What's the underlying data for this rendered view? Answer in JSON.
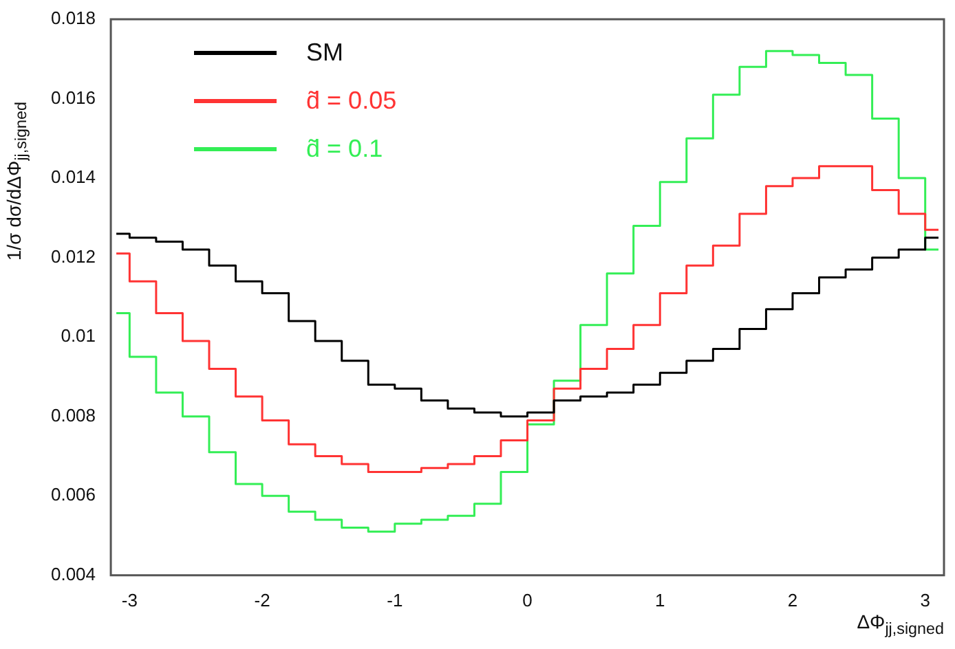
{
  "chart_data": {
    "type": "step",
    "xlabel": "ΔΦ$_{jj,signed}$",
    "ylabel": "1/σ dσ/dΔΦ$_{jj,signed}$",
    "x": [
      -3.1,
      -2.9,
      -2.7,
      -2.5,
      -2.3,
      -2.1,
      -1.9,
      -1.7,
      -1.5,
      -1.3,
      -1.1,
      -0.9,
      -0.7,
      -0.5,
      -0.3,
      -0.1,
      0.1,
      0.3,
      0.5,
      0.7,
      0.9,
      1.1,
      1.3,
      1.5,
      1.7,
      1.9,
      2.1,
      2.3,
      2.5,
      2.7,
      2.9,
      3.1
    ],
    "series": [
      {
        "name": "SM",
        "color": "#000000",
        "values": [
          0.0126,
          0.0125,
          0.0124,
          0.0122,
          0.0118,
          0.0114,
          0.0111,
          0.0104,
          0.0099,
          0.0094,
          0.0088,
          0.0087,
          0.0084,
          0.0082,
          0.0081,
          0.008,
          0.0081,
          0.0084,
          0.0085,
          0.0086,
          0.0088,
          0.0091,
          0.0094,
          0.0097,
          0.0102,
          0.0107,
          0.0111,
          0.0115,
          0.0117,
          0.012,
          0.0122,
          0.0125
        ]
      },
      {
        "name": "d̃ = 0.05",
        "color": "#ff3333",
        "values": [
          0.0121,
          0.0114,
          0.0106,
          0.0099,
          0.0092,
          0.0085,
          0.0079,
          0.0073,
          0.007,
          0.0068,
          0.0066,
          0.0066,
          0.0067,
          0.0068,
          0.007,
          0.0074,
          0.0079,
          0.0087,
          0.0092,
          0.0097,
          0.0103,
          0.0111,
          0.0118,
          0.0123,
          0.0131,
          0.0138,
          0.014,
          0.0143,
          0.0143,
          0.0137,
          0.0131,
          0.0127
        ]
      },
      {
        "name": "d̃ = 0.1",
        "color": "#33ee55",
        "values": [
          0.0106,
          0.0095,
          0.0086,
          0.008,
          0.0071,
          0.0063,
          0.006,
          0.0056,
          0.0054,
          0.0052,
          0.0051,
          0.0053,
          0.0054,
          0.0055,
          0.0058,
          0.0066,
          0.0078,
          0.0089,
          0.0103,
          0.0116,
          0.0128,
          0.0139,
          0.015,
          0.0161,
          0.0168,
          0.0172,
          0.0171,
          0.0169,
          0.0166,
          0.0155,
          0.014,
          0.0122
        ]
      }
    ],
    "xlim": [
      -3.1416,
      3.1416
    ],
    "xticks": [
      -3,
      -2,
      -1,
      0,
      1,
      2,
      3
    ],
    "ylim": [
      0.004,
      0.018
    ],
    "yticks": [
      0.004,
      0.006,
      0.008,
      0.01,
      0.012,
      0.014,
      0.016,
      0.018
    ],
    "legend": "top left"
  }
}
